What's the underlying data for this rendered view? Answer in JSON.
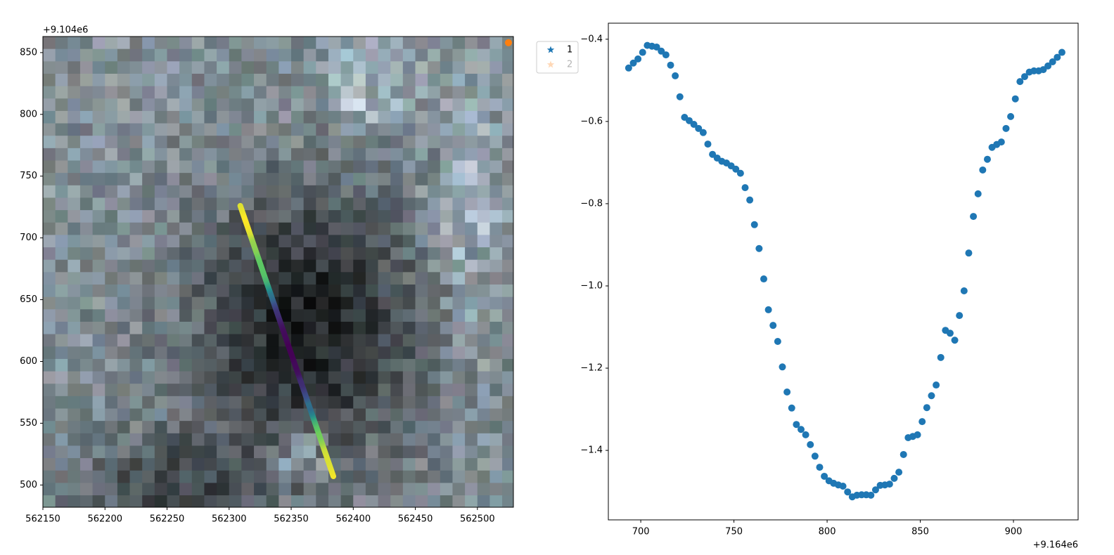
{
  "chart_data": [
    {
      "type": "image",
      "offset_text": "+9.104e6",
      "xlim": [
        562150,
        562529
      ],
      "ylim": [
        482,
        863
      ],
      "xticks": [
        562150,
        562200,
        562250,
        562300,
        562350,
        562400,
        562450,
        562500
      ],
      "yticks": [
        500,
        550,
        600,
        650,
        700,
        750,
        800,
        850
      ],
      "line": {
        "x": [
          562309,
          562384
        ],
        "y": [
          726,
          507
        ],
        "colormap": "viridis"
      },
      "points": {
        "x": [
          562525
        ],
        "y": [
          858
        ],
        "color": "#ff7f0e"
      },
      "legend_loc": "outside-upper-right",
      "legend": [
        {
          "name": "1",
          "color": "#1f77b4",
          "alpha": 1,
          "marker": "star"
        },
        {
          "name": "2",
          "color": "#ff7f0e",
          "alpha": 0.3,
          "marker": "star"
        }
      ]
    },
    {
      "type": "scatter",
      "offset_text": "+9.164e6",
      "color": "#1f77b4",
      "xlim": [
        682.6,
        934.7
      ],
      "ylim": [
        -1.569,
        -0.361
      ],
      "xticks": [
        700,
        750,
        800,
        850,
        900
      ],
      "yticks": [
        {
          "value": -1.4,
          "label": "−1.4"
        },
        {
          "value": -1.2,
          "label": "−1.2"
        },
        {
          "value": -1.0,
          "label": "−1.0"
        },
        {
          "value": -0.8,
          "label": "−0.8"
        },
        {
          "value": -0.6,
          "label": "−0.6"
        },
        {
          "value": -0.4,
          "label": "−0.4"
        }
      ],
      "x": [
        693.5,
        696,
        698.5,
        701,
        703.5,
        706,
        708.5,
        711,
        713.5,
        716,
        718.5,
        721,
        723.5,
        726,
        728.5,
        731,
        733.5,
        736,
        738.5,
        741,
        743.5,
        746,
        748.5,
        751,
        753.5,
        756,
        758.5,
        761,
        763.5,
        766,
        768.5,
        771,
        773.5,
        776,
        778.5,
        781,
        783.5,
        786,
        788.5,
        791,
        793.5,
        796,
        798.5,
        801,
        803.5,
        806,
        808.5,
        811,
        813.5,
        816,
        818.5,
        821,
        823.5,
        826,
        828.5,
        831,
        833.5,
        836,
        838.5,
        841,
        843.5,
        846,
        848.5,
        851,
        853.5,
        856,
        858.5,
        861,
        863.5,
        866,
        868.5,
        871,
        873.5,
        876,
        878.5,
        881,
        883.5,
        886,
        888.5,
        891,
        893.5,
        896,
        898.5,
        901,
        903.5,
        906,
        908.5,
        911,
        913.5,
        916,
        918.5,
        921,
        923.5,
        926
      ],
      "values": [
        -0.47,
        -0.458,
        -0.448,
        -0.432,
        -0.415,
        -0.417,
        -0.419,
        -0.429,
        -0.438,
        -0.463,
        -0.489,
        -0.54,
        -0.59,
        -0.598,
        -0.607,
        -0.617,
        -0.627,
        -0.655,
        -0.68,
        -0.689,
        -0.697,
        -0.701,
        -0.708,
        -0.716,
        -0.726,
        -0.761,
        -0.791,
        -0.851,
        -0.909,
        -0.983,
        -1.058,
        -1.096,
        -1.135,
        -1.197,
        -1.258,
        -1.297,
        -1.337,
        -1.349,
        -1.362,
        -1.386,
        -1.414,
        -1.441,
        -1.463,
        -1.474,
        -1.48,
        -1.484,
        -1.487,
        -1.501,
        -1.513,
        -1.509,
        -1.508,
        -1.508,
        -1.509,
        -1.496,
        -1.485,
        -1.484,
        -1.482,
        -1.468,
        -1.453,
        -1.41,
        -1.369,
        -1.366,
        -1.362,
        -1.33,
        -1.296,
        -1.267,
        -1.241,
        -1.174,
        -1.108,
        -1.115,
        -1.132,
        -1.072,
        -1.012,
        -0.92,
        -0.831,
        -0.776,
        -0.718,
        -0.692,
        -0.663,
        -0.656,
        -0.65,
        -0.617,
        -0.588,
        -0.545,
        -0.503,
        -0.491,
        -0.48,
        -0.477,
        -0.477,
        -0.474,
        -0.465,
        -0.455,
        -0.444,
        -0.432
      ]
    }
  ]
}
